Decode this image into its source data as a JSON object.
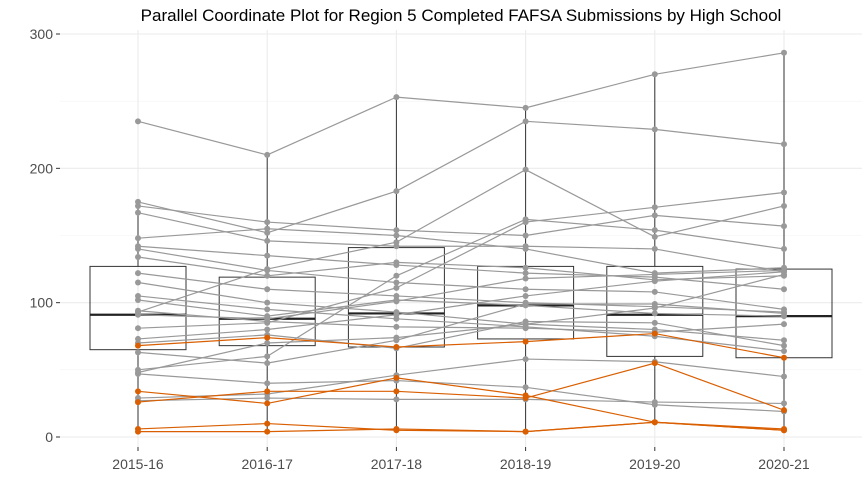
{
  "chart_data": {
    "type": "line",
    "title": "Parallel Coordinate Plot for Region 5 Completed FAFSA Submissions by High School",
    "xlabel": "",
    "ylabel": "",
    "categories": [
      "2015-16",
      "2016-17",
      "2017-18",
      "2018-19",
      "2019-20",
      "2020-21"
    ],
    "ylim": [
      0,
      305
    ],
    "yticks": [
      0,
      100,
      200,
      300
    ],
    "grid": true,
    "colors": {
      "gray_line": "#999999",
      "gray_point": "#999999",
      "highlight": "#d95f02",
      "box": "#333333",
      "median": "#222222",
      "grid": "#ebebeb"
    },
    "boxplots": [
      {
        "q1": 65,
        "median": 91,
        "q3": 127,
        "low": 4,
        "high": 176
      },
      {
        "q1": 68,
        "median": 88,
        "q3": 119,
        "low": 4,
        "high": 210
      },
      {
        "q1": 67,
        "median": 92,
        "q3": 141,
        "low": 5,
        "high": 253
      },
      {
        "q1": 73,
        "median": 98,
        "q3": 127,
        "low": 4,
        "high": 245
      },
      {
        "q1": 60,
        "median": 91,
        "q3": 127,
        "low": 11,
        "high": 270
      },
      {
        "q1": 59,
        "median": 90,
        "q3": 125,
        "low": 5,
        "high": 286
      }
    ],
    "series": [
      {
        "values": [
          235,
          210,
          253,
          245,
          270,
          286
        ],
        "highlight": false
      },
      {
        "values": [
          175,
          152,
          183,
          235,
          229,
          218
        ],
        "highlight": false
      },
      {
        "values": [
          93,
          125,
          145,
          199,
          149,
          172
        ],
        "highlight": false
      },
      {
        "values": [
          172,
          160,
          154,
          150,
          165,
          157
        ],
        "highlight": false
      },
      {
        "values": [
          167,
          146,
          142,
          142,
          140,
          123
        ],
        "highlight": false
      },
      {
        "values": [
          148,
          155,
          150,
          140,
          122,
          126
        ],
        "highlight": false
      },
      {
        "values": [
          142,
          135,
          128,
          122,
          119,
          110
        ],
        "highlight": false
      },
      {
        "values": [
          140,
          124,
          115,
          110,
          108,
          95
        ],
        "highlight": false
      },
      {
        "values": [
          134,
          120,
          130,
          126,
          117,
          120
        ],
        "highlight": false
      },
      {
        "values": [
          122,
          110,
          105,
          100,
          97,
          93
        ],
        "highlight": false
      },
      {
        "values": [
          115,
          100,
          93,
          84,
          80,
          72
        ],
        "highlight": false
      },
      {
        "values": [
          105,
          95,
          88,
          82,
          75,
          64
        ],
        "highlight": false
      },
      {
        "values": [
          102,
          90,
          102,
          98,
          92,
          90
        ],
        "highlight": false
      },
      {
        "values": [
          94,
          86,
          82,
          81,
          78,
          84
        ],
        "highlight": false
      },
      {
        "values": [
          91,
          88,
          101,
          118,
          121,
          124
        ],
        "highlight": false
      },
      {
        "values": [
          81,
          85,
          111,
          160,
          171,
          182
        ],
        "highlight": false
      },
      {
        "values": [
          73,
          80,
          91,
          105,
          116,
          123
        ],
        "highlight": false
      },
      {
        "values": [
          70,
          76,
          66,
          86,
          85,
          68
        ],
        "highlight": false
      },
      {
        "values": [
          63,
          55,
          72,
          99,
          99,
          92
        ],
        "highlight": false
      },
      {
        "values": [
          50,
          60,
          120,
          162,
          154,
          140
        ],
        "highlight": false
      },
      {
        "values": [
          48,
          70,
          74,
          84,
          96,
          121
        ],
        "highlight": false
      },
      {
        "values": [
          47,
          40,
          42,
          37,
          24,
          19
        ],
        "highlight": false
      },
      {
        "values": [
          29,
          32,
          46,
          58,
          56,
          45
        ],
        "highlight": false
      },
      {
        "values": [
          27,
          29,
          28,
          28,
          26,
          25
        ],
        "highlight": false
      },
      {
        "values": [
          68,
          74,
          67,
          71,
          77,
          59
        ],
        "highlight": true
      },
      {
        "values": [
          34,
          25,
          44,
          31,
          11,
          5
        ],
        "highlight": true
      },
      {
        "values": [
          26,
          34,
          34,
          29,
          55,
          20
        ],
        "highlight": true
      },
      {
        "values": [
          6,
          10,
          5,
          4,
          11,
          6
        ],
        "highlight": true
      },
      {
        "values": [
          4,
          4,
          6,
          4,
          11,
          5
        ],
        "highlight": true
      }
    ]
  }
}
